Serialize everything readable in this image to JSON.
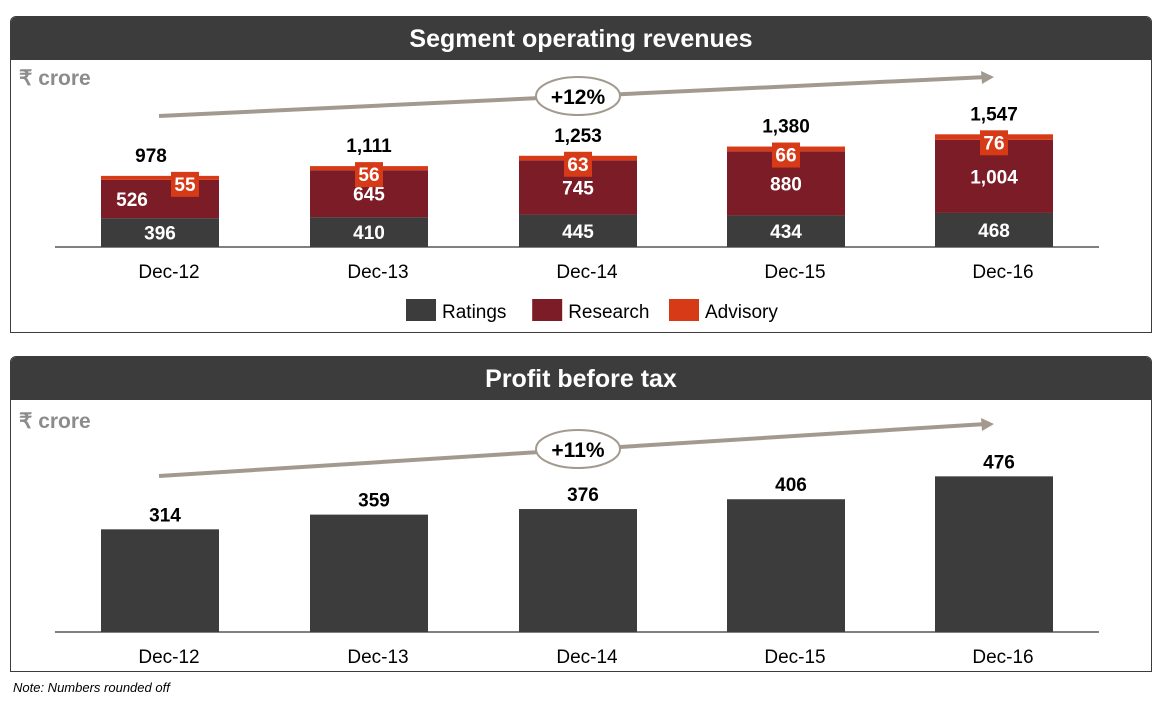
{
  "chart_data": [
    {
      "type": "bar",
      "stacked": true,
      "title": "Segment operating revenues",
      "unit_label": "₹ crore",
      "categories": [
        "Dec-12",
        "Dec-13",
        "Dec-14",
        "Dec-15",
        "Dec-16"
      ],
      "series": [
        {
          "name": "Ratings",
          "color": "#3c3c3c",
          "values": [
            396,
            410,
            445,
            434,
            468
          ]
        },
        {
          "name": "Research",
          "color": "#7b1c26",
          "values": [
            526,
            645,
            745,
            880,
            1004
          ]
        },
        {
          "name": "Advisory",
          "color": "#d63a17",
          "values": [
            55,
            56,
            63,
            66,
            76
          ]
        }
      ],
      "value_labels": {
        "Ratings": [
          "396",
          "410",
          "445",
          "434",
          "468"
        ],
        "Research": [
          "526",
          "645",
          "745",
          "880",
          "1,004"
        ],
        "Advisory": [
          "55",
          "56",
          "63",
          "66",
          "76"
        ]
      },
      "totals": [
        "978",
        "1,111",
        "1,253",
        "1,380",
        "1,547"
      ],
      "growth_label": "+12%",
      "legend": "bottom-center",
      "grid": false
    },
    {
      "type": "bar",
      "title": "Profit before tax",
      "unit_label": "₹ crore",
      "categories": [
        "Dec-12",
        "Dec-13",
        "Dec-14",
        "Dec-15",
        "Dec-16"
      ],
      "values": [
        314,
        359,
        376,
        406,
        476
      ],
      "value_labels": [
        "314",
        "359",
        "376",
        "406",
        "476"
      ],
      "color": "#3c3c3c",
      "growth_label": "+11%",
      "grid": false
    }
  ],
  "note": "Note: Numbers rounded off"
}
